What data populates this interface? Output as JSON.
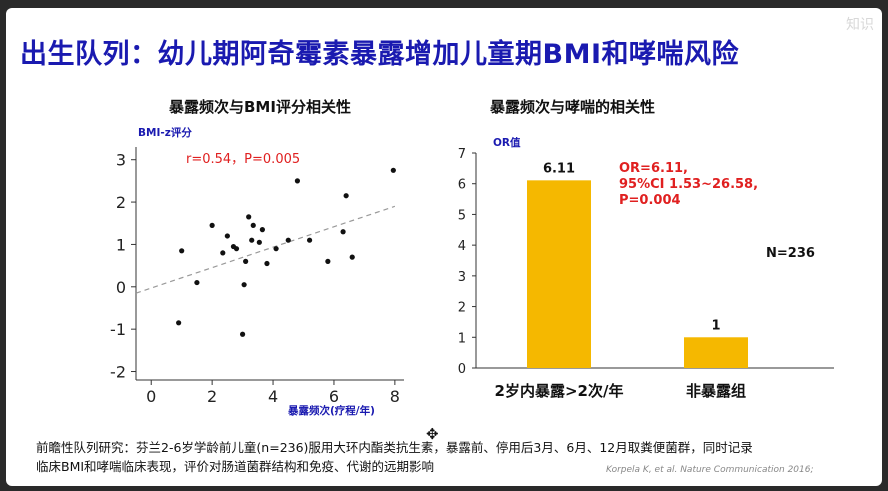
{
  "slide": {
    "title": "出生队列：幼儿期阿奇霉素暴露增加儿童期BMI和哮喘风险",
    "watermark": "知识",
    "footer_line1": "前瞻性队列研究：芬兰2-6岁学龄前儿童(n=236)服用大环内酯类抗生素，暴露前、停用后3月、6月、12月取粪便菌群，同时记录",
    "footer_line2": "临床BMI和哮喘临床表现，评价对肠道菌群结构和免疫、代谢的远期影响",
    "citation": "Korpela K, et al.  Nature Communication  2016;"
  },
  "chart_data": [
    {
      "type": "scatter",
      "title": "暴露频次与BMI评分相关性",
      "xlabel": "暴露频次(疗程/年)",
      "ylabel": "BMI-z评分",
      "xlim": [
        -0.5,
        8.3
      ],
      "ylim": [
        -2.2,
        3.3
      ],
      "xticks": [
        0,
        2,
        4,
        6,
        8
      ],
      "yticks": [
        3,
        2,
        1,
        0,
        -1,
        -2
      ],
      "annotation": "r=0.54，P=0.005",
      "annotation_color": "#e02020",
      "trendline": {
        "from": [
          -0.5,
          -0.15
        ],
        "to": [
          8,
          1.9
        ],
        "style": "dashed"
      },
      "points": [
        {
          "x": 0.9,
          "y": -0.85
        },
        {
          "x": 1.0,
          "y": 0.85
        },
        {
          "x": 1.5,
          "y": 0.1
        },
        {
          "x": 2.0,
          "y": 1.45
        },
        {
          "x": 2.35,
          "y": 0.8
        },
        {
          "x": 2.5,
          "y": 1.2
        },
        {
          "x": 2.7,
          "y": 0.95
        },
        {
          "x": 2.8,
          "y": 0.9
        },
        {
          "x": 3.0,
          "y": -1.12
        },
        {
          "x": 3.05,
          "y": 0.05
        },
        {
          "x": 3.1,
          "y": 0.6
        },
        {
          "x": 3.2,
          "y": 1.65
        },
        {
          "x": 3.3,
          "y": 1.1
        },
        {
          "x": 3.35,
          "y": 1.45
        },
        {
          "x": 3.55,
          "y": 1.05
        },
        {
          "x": 3.65,
          "y": 1.35
        },
        {
          "x": 3.8,
          "y": 0.55
        },
        {
          "x": 4.1,
          "y": 0.9
        },
        {
          "x": 4.5,
          "y": 1.1
        },
        {
          "x": 4.8,
          "y": 2.5
        },
        {
          "x": 5.2,
          "y": 1.1
        },
        {
          "x": 5.8,
          "y": 0.6
        },
        {
          "x": 6.3,
          "y": 1.3
        },
        {
          "x": 6.4,
          "y": 2.15
        },
        {
          "x": 6.6,
          "y": 0.7
        },
        {
          "x": 7.95,
          "y": 2.75
        }
      ],
      "point_color": "#111111"
    },
    {
      "type": "bar",
      "title": "暴露频次与哮喘的相关性",
      "ylabel": "OR值",
      "ylim": [
        0,
        7
      ],
      "yticks": [
        0,
        1,
        2,
        3,
        4,
        5,
        6,
        7
      ],
      "categories": [
        "2岁内暴露>2次/年",
        "非暴露组"
      ],
      "values": [
        6.11,
        1
      ],
      "value_labels": [
        "6.11",
        "1"
      ],
      "bar_color": "#f5b800",
      "annotation_lines": [
        "OR=6.11,",
        "95%CI 1.53~26.58,",
        "P=0.004"
      ],
      "annotation_color": "#e02020",
      "n_label": "N=236"
    }
  ]
}
